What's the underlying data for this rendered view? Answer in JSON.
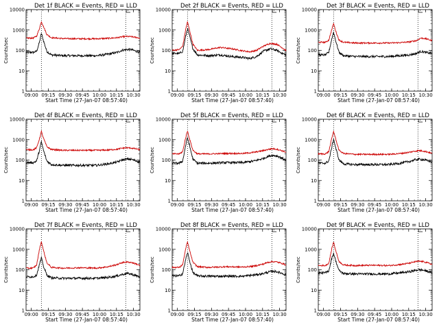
{
  "chart_data": [
    {
      "type": "line",
      "title": "Det 1f BLACK = Events, RED = LLD",
      "xlabel": "Start Time (27-Jan-07 08:57:40)",
      "ylabel": "Counts/sec",
      "xticks": [
        "09:00",
        "09:15",
        "09:30",
        "09:45",
        "10:00",
        "10:15",
        "10:30"
      ],
      "xlim_minutes": [
        -2.3,
        98
      ],
      "yscale": "log",
      "ylim": [
        1,
        10000
      ],
      "yticks": [
        "1",
        "10",
        "100",
        "1000",
        "10000"
      ],
      "grid": false,
      "vlines_minutes": [
        11.2,
        85.5
      ],
      "series": [
        {
          "color": "#000000",
          "x": [
            -2.3,
            4,
            7,
            9.5,
            11.2,
            13,
            16,
            20,
            30,
            45,
            60,
            70,
            78,
            82,
            86,
            90,
            95,
            98
          ],
          "y": [
            80,
            80,
            90,
            250,
            700,
            300,
            90,
            60,
            55,
            55,
            55,
            65,
            80,
            100,
            110,
            110,
            90,
            80
          ]
        },
        {
          "color": "#cc0000",
          "x": [
            -2.3,
            4,
            7,
            9.5,
            11.2,
            13,
            16,
            20,
            30,
            45,
            60,
            70,
            78,
            82,
            86,
            90,
            95,
            98
          ],
          "y": [
            400,
            400,
            500,
            1200,
            2600,
            1500,
            600,
            420,
            380,
            370,
            370,
            390,
            420,
            460,
            480,
            470,
            430,
            400
          ]
        }
      ]
    },
    {
      "type": "line",
      "title": "Det 2f BLACK = Events, RED = LLD",
      "xlabel": "Start Time (27-Jan-07 08:57:40)",
      "ylabel": "Counts/sec",
      "xticks": [
        "09:00",
        "09:15",
        "09:30",
        "09:45",
        "10:00",
        "10:15",
        "10:30"
      ],
      "xlim_minutes": [
        -2.3,
        98
      ],
      "yscale": "log",
      "ylim": [
        1,
        10000
      ],
      "yticks": [
        "1",
        "10",
        "100",
        "1000",
        "10000"
      ],
      "grid": false,
      "vlines_minutes": [
        11.2,
        85.5
      ],
      "series": [
        {
          "color": "#000000",
          "x": [
            -2.3,
            4,
            7,
            9.5,
            11.2,
            13,
            16,
            20,
            30,
            40,
            50,
            60,
            66,
            72,
            78,
            84,
            90,
            95,
            98
          ],
          "y": [
            70,
            70,
            90,
            450,
            1200,
            500,
            120,
            60,
            55,
            60,
            50,
            45,
            40,
            50,
            90,
            120,
            100,
            70,
            60
          ]
        },
        {
          "color": "#cc0000",
          "x": [
            -2.3,
            4,
            7,
            9.5,
            11.2,
            13,
            16,
            20,
            30,
            40,
            50,
            60,
            66,
            72,
            78,
            84,
            90,
            95,
            98
          ],
          "y": [
            100,
            110,
            160,
            1000,
            2500,
            1000,
            200,
            100,
            110,
            140,
            120,
            95,
            85,
            100,
            160,
            220,
            200,
            130,
            100
          ]
        }
      ]
    },
    {
      "type": "line",
      "title": "Det 3f BLACK = Events, RED = LLD",
      "xlabel": "Start Time (27-Jan-07 08:57:40)",
      "ylabel": "Counts/sec",
      "xticks": [
        "09:00",
        "09:15",
        "09:30",
        "09:45",
        "10:00",
        "10:15",
        "10:30"
      ],
      "xlim_minutes": [
        -2.3,
        98
      ],
      "yscale": "log",
      "ylim": [
        1,
        10000
      ],
      "yticks": [
        "1",
        "10",
        "100",
        "1000",
        "10000"
      ],
      "grid": false,
      "vlines_minutes": [
        11.2,
        85.5
      ],
      "series": [
        {
          "color": "#000000",
          "x": [
            -2.3,
            4,
            7,
            9.5,
            11.2,
            13,
            16,
            20,
            30,
            45,
            60,
            70,
            78,
            84,
            88,
            92,
            98
          ],
          "y": [
            60,
            60,
            80,
            350,
            800,
            300,
            80,
            55,
            50,
            50,
            50,
            55,
            60,
            70,
            90,
            80,
            70
          ]
        },
        {
          "color": "#cc0000",
          "x": [
            -2.3,
            4,
            7,
            9.5,
            11.2,
            13,
            16,
            20,
            30,
            45,
            60,
            70,
            78,
            84,
            88,
            92,
            98
          ],
          "y": [
            250,
            250,
            320,
            1000,
            2100,
            900,
            320,
            250,
            230,
            230,
            230,
            240,
            260,
            300,
            400,
            380,
            300
          ]
        }
      ]
    },
    {
      "type": "line",
      "title": "Det 4f BLACK = Events, RED = LLD",
      "xlabel": "Start Time (27-Jan-07 08:57:40)",
      "ylabel": "Counts/sec",
      "xticks": [
        "09:00",
        "09:15",
        "09:30",
        "09:45",
        "10:00",
        "10:15",
        "10:30"
      ],
      "xlim_minutes": [
        -2.3,
        98
      ],
      "yscale": "log",
      "ylim": [
        1,
        10000
      ],
      "yticks": [
        "1",
        "10",
        "100",
        "1000",
        "10000"
      ],
      "grid": false,
      "vlines_minutes": [
        11.2,
        85.5
      ],
      "series": [
        {
          "color": "#000000",
          "x": [
            -2.3,
            4,
            7,
            9.5,
            11.2,
            13,
            16,
            20,
            30,
            45,
            60,
            70,
            78,
            82,
            86,
            90,
            95,
            98
          ],
          "y": [
            75,
            75,
            90,
            300,
            800,
            300,
            90,
            60,
            55,
            55,
            55,
            65,
            80,
            100,
            110,
            110,
            90,
            80
          ]
        },
        {
          "color": "#cc0000",
          "x": [
            -2.3,
            4,
            7,
            9.5,
            11.2,
            13,
            16,
            20,
            30,
            45,
            60,
            70,
            78,
            82,
            86,
            90,
            95,
            98
          ],
          "y": [
            320,
            320,
            400,
            1100,
            2500,
            1200,
            450,
            330,
            300,
            300,
            300,
            310,
            340,
            380,
            400,
            390,
            350,
            320
          ]
        }
      ]
    },
    {
      "type": "line",
      "title": "Det 5f BLACK = Events, RED = LLD",
      "xlabel": "Start Time (27-Jan-07 08:57:40)",
      "ylabel": "Counts/sec",
      "xticks": [
        "09:00",
        "09:15",
        "09:30",
        "09:45",
        "10:00",
        "10:15",
        "10:30"
      ],
      "xlim_minutes": [
        -2.3,
        98
      ],
      "yscale": "log",
      "ylim": [
        1,
        10000
      ],
      "yticks": [
        "1",
        "10",
        "100",
        "1000",
        "10000"
      ],
      "grid": false,
      "vlines_minutes": [
        11.2,
        85.5
      ],
      "series": [
        {
          "color": "#000000",
          "x": [
            -2.3,
            4,
            7,
            9.5,
            11.2,
            13,
            16,
            20,
            30,
            45,
            60,
            70,
            78,
            82,
            86,
            90,
            95,
            98
          ],
          "y": [
            70,
            70,
            90,
            500,
            1300,
            500,
            110,
            70,
            70,
            75,
            75,
            90,
            120,
            150,
            170,
            160,
            120,
            100
          ]
        },
        {
          "color": "#cc0000",
          "x": [
            -2.3,
            4,
            7,
            9.5,
            11.2,
            13,
            16,
            20,
            30,
            45,
            60,
            70,
            78,
            82,
            86,
            90,
            95,
            98
          ],
          "y": [
            200,
            200,
            260,
            1200,
            2700,
            1100,
            300,
            200,
            200,
            210,
            210,
            240,
            290,
            330,
            360,
            340,
            280,
            240
          ]
        }
      ]
    },
    {
      "type": "line",
      "title": "Det 6f BLACK = Events, RED = LLD",
      "xlabel": "Start Time (27-Jan-07 08:57:40)",
      "ylabel": "Counts/sec",
      "xticks": [
        "09:00",
        "09:15",
        "09:30",
        "09:45",
        "10:00",
        "10:15",
        "10:30"
      ],
      "xlim_minutes": [
        -2.3,
        98
      ],
      "yscale": "log",
      "ylim": [
        1,
        10000
      ],
      "yticks": [
        "1",
        "10",
        "100",
        "1000",
        "10000"
      ],
      "grid": false,
      "vlines_minutes": [
        11.2,
        85.5
      ],
      "series": [
        {
          "color": "#000000",
          "x": [
            -2.3,
            4,
            7,
            9.5,
            11.2,
            13,
            16,
            20,
            30,
            45,
            60,
            70,
            78,
            82,
            86,
            90,
            95,
            98
          ],
          "y": [
            70,
            70,
            90,
            400,
            1100,
            400,
            100,
            65,
            60,
            60,
            60,
            70,
            85,
            100,
            110,
            105,
            90,
            80
          ]
        },
        {
          "color": "#cc0000",
          "x": [
            -2.3,
            4,
            7,
            9.5,
            11.2,
            13,
            16,
            20,
            30,
            45,
            60,
            70,
            78,
            82,
            86,
            90,
            95,
            98
          ],
          "y": [
            200,
            200,
            260,
            1100,
            2600,
            1100,
            300,
            210,
            190,
            190,
            190,
            210,
            240,
            270,
            290,
            280,
            240,
            210
          ]
        }
      ]
    },
    {
      "type": "line",
      "title": "Det 7f BLACK = Events, RED = LLD",
      "xlabel": "Start Time (27-Jan-07 08:57:40)",
      "ylabel": "Counts/sec",
      "xticks": [
        "09:00",
        "09:15",
        "09:30",
        "09:45",
        "10:00",
        "10:15",
        "10:30"
      ],
      "xlim_minutes": [
        -2.3,
        98
      ],
      "yscale": "log",
      "ylim": [
        1,
        10000
      ],
      "yticks": [
        "1",
        "10",
        "100",
        "1000",
        "10000"
      ],
      "grid": false,
      "vlines_minutes": [
        11.2,
        85.5
      ],
      "series": [
        {
          "color": "#000000",
          "x": [
            -2.3,
            4,
            7,
            9.5,
            11.2,
            13,
            16,
            20,
            30,
            45,
            60,
            70,
            78,
            82,
            86,
            90,
            95,
            98
          ],
          "y": [
            45,
            45,
            55,
            180,
            380,
            150,
            55,
            40,
            38,
            38,
            38,
            42,
            50,
            58,
            65,
            62,
            50,
            45
          ]
        },
        {
          "color": "#cc0000",
          "x": [
            -2.3,
            4,
            7,
            9.5,
            11.2,
            13,
            16,
            20,
            30,
            45,
            60,
            70,
            78,
            82,
            86,
            90,
            95,
            98
          ],
          "y": [
            120,
            120,
            170,
            1000,
            2400,
            900,
            220,
            130,
            120,
            125,
            120,
            140,
            180,
            220,
            240,
            230,
            190,
            160
          ]
        }
      ]
    },
    {
      "type": "line",
      "title": "Det 8f BLACK = Events, RED = LLD",
      "xlabel": "Start Time (27-Jan-07 08:57:40)",
      "ylabel": "Counts/sec",
      "xticks": [
        "09:00",
        "09:15",
        "09:30",
        "09:45",
        "10:00",
        "10:15",
        "10:30"
      ],
      "xlim_minutes": [
        -2.3,
        98
      ],
      "yscale": "log",
      "ylim": [
        1,
        10000
      ],
      "yticks": [
        "1",
        "10",
        "100",
        "1000",
        "10000"
      ],
      "grid": false,
      "vlines_minutes": [
        11.2,
        85.5
      ],
      "series": [
        {
          "color": "#000000",
          "x": [
            -2.3,
            4,
            7,
            9.5,
            11.2,
            13,
            16,
            20,
            30,
            45,
            60,
            70,
            78,
            82,
            86,
            90,
            95,
            98
          ],
          "y": [
            50,
            50,
            65,
            300,
            700,
            280,
            70,
            50,
            48,
            48,
            48,
            55,
            65,
            75,
            85,
            80,
            65,
            55
          ]
        },
        {
          "color": "#cc0000",
          "x": [
            -2.3,
            4,
            7,
            9.5,
            11.2,
            13,
            16,
            20,
            30,
            45,
            60,
            70,
            78,
            82,
            86,
            90,
            95,
            98
          ],
          "y": [
            130,
            130,
            180,
            1000,
            2300,
            900,
            230,
            140,
            130,
            140,
            135,
            150,
            190,
            230,
            250,
            240,
            200,
            170
          ]
        }
      ]
    },
    {
      "type": "line",
      "title": "Det 9f BLACK = Events, RED = LLD",
      "xlabel": "Start Time (27-Jan-07 08:57:40)",
      "ylabel": "Counts/sec",
      "xticks": [
        "09:00",
        "09:15",
        "09:30",
        "09:45",
        "10:00",
        "10:15",
        "10:30"
      ],
      "xlim_minutes": [
        -2.3,
        98
      ],
      "yscale": "log",
      "ylim": [
        1,
        10000
      ],
      "yticks": [
        "1",
        "10",
        "100",
        "1000",
        "10000"
      ],
      "grid": false,
      "vlines_minutes": [
        11.2,
        85.5
      ],
      "series": [
        {
          "color": "#000000",
          "x": [
            -2.3,
            4,
            7,
            9.5,
            11.2,
            13,
            16,
            20,
            30,
            45,
            60,
            70,
            78,
            82,
            86,
            90,
            95,
            98
          ],
          "y": [
            70,
            70,
            90,
            350,
            650,
            280,
            90,
            65,
            62,
            62,
            62,
            70,
            80,
            90,
            100,
            95,
            80,
            70
          ]
        },
        {
          "color": "#cc0000",
          "x": [
            -2.3,
            4,
            7,
            9.5,
            11.2,
            13,
            16,
            20,
            30,
            45,
            60,
            70,
            78,
            82,
            86,
            90,
            95,
            98
          ],
          "y": [
            160,
            160,
            210,
            1000,
            2300,
            900,
            250,
            170,
            160,
            165,
            160,
            180,
            210,
            240,
            260,
            250,
            210,
            180
          ]
        }
      ]
    }
  ]
}
